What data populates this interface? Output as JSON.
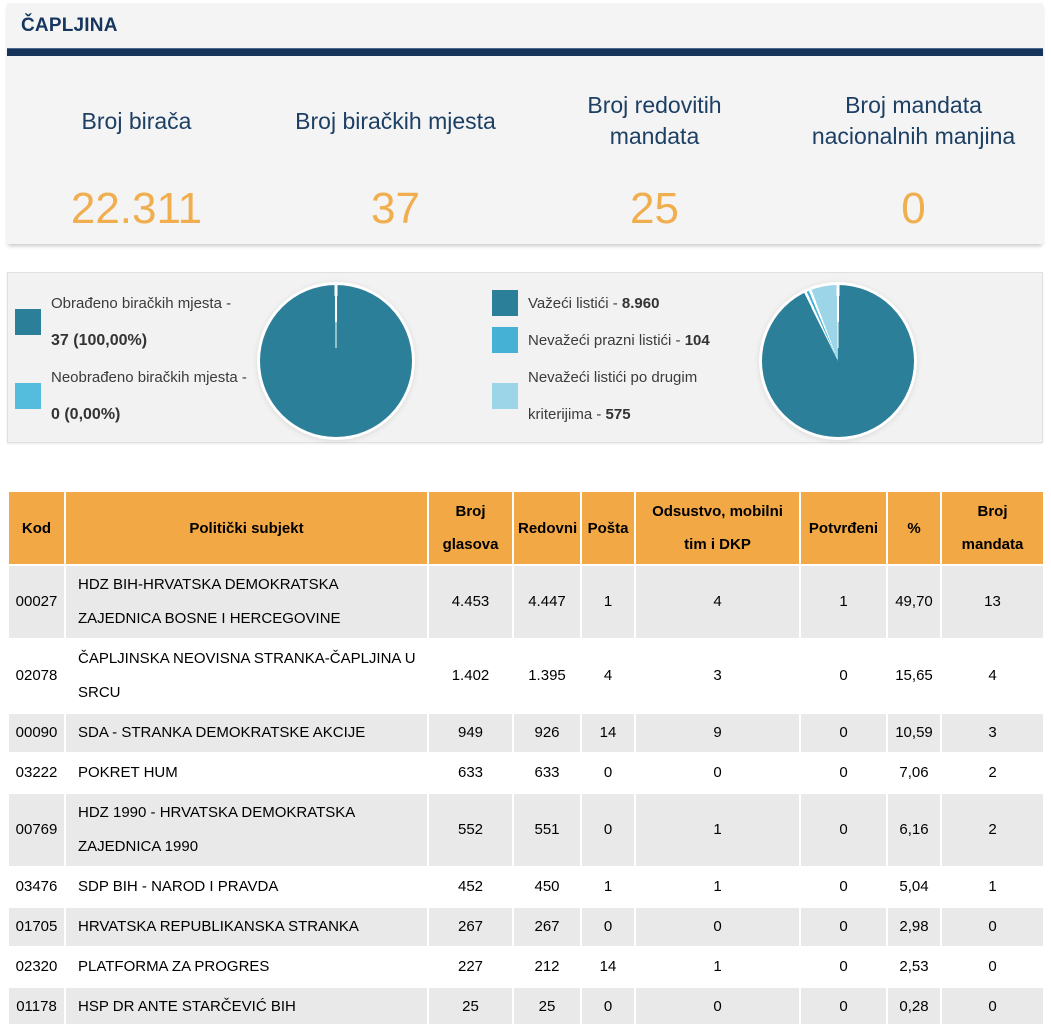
{
  "title": "ČAPLJINA",
  "stats": {
    "cards": [
      {
        "label": "Broj birača",
        "value": "22.311"
      },
      {
        "label": "Broj biračkih mjesta",
        "value": "37"
      },
      {
        "label": "Broj redovitih mandata",
        "value": "25"
      },
      {
        "label": "Broj mandata nacionalnih manjina",
        "value": "0"
      }
    ]
  },
  "processing_legend": {
    "items": [
      {
        "label": "Obrađeno biračkih mjesta -",
        "value": "37 (100,00%)",
        "color": "#2c7f99"
      },
      {
        "label": "Neobrađeno biračkih mjesta -",
        "value": "0 (0,00%)",
        "color": "#54bcdc"
      }
    ]
  },
  "ballots_legend": {
    "items": [
      {
        "label": "Važeći listići -",
        "value": "8.960",
        "color": "#2c7f99"
      },
      {
        "label": "Nevažeći prazni listići -",
        "value": "104",
        "color": "#44b1d5"
      },
      {
        "label": "Nevažeći listići po drugim kriterijima -",
        "value": "575",
        "color": "#9cd4e8"
      }
    ]
  },
  "chart_data": [
    {
      "type": "pie",
      "labels": [
        "Obrađeno biračkih mjesta",
        "Neobrađeno biračkih mjesta"
      ],
      "values": [
        37,
        0
      ],
      "percent_labels": [
        "100,00%",
        "0,00%"
      ],
      "colors": [
        "#2c7f99",
        "#54bcdc"
      ],
      "legend_position": "left"
    },
    {
      "type": "pie",
      "labels": [
        "Važeći listići",
        "Nevažeći prazni listići",
        "Nevažeći listići po drugim kriterijima"
      ],
      "values": [
        8960,
        104,
        575
      ],
      "colors": [
        "#2c7f99",
        "#44b1d5",
        "#9cd4e8"
      ],
      "legend_position": "left"
    }
  ],
  "table": {
    "headers": [
      "Kod",
      "Politički subjekt",
      "Broj glasova",
      "Redovni",
      "Pošta",
      "Odsustvo, mobilni tim i DKP",
      "Potvrđeni",
      "%",
      "Broj mandata"
    ],
    "rows": [
      [
        "00027",
        "HDZ BIH-HRVATSKA DEMOKRATSKA ZAJEDNICA BOSNE I HERCEGOVINE",
        "4.453",
        "4.447",
        "1",
        "4",
        "1",
        "49,70",
        "13"
      ],
      [
        "02078",
        "ČAPLJINSKA NEOVISNA STRANKA-ČAPLJINA U SRCU",
        "1.402",
        "1.395",
        "4",
        "3",
        "0",
        "15,65",
        "4"
      ],
      [
        "00090",
        "SDA - STRANKA DEMOKRATSKE AKCIJE",
        "949",
        "926",
        "14",
        "9",
        "0",
        "10,59",
        "3"
      ],
      [
        "03222",
        "POKRET HUM",
        "633",
        "633",
        "0",
        "0",
        "0",
        "7,06",
        "2"
      ],
      [
        "00769",
        "HDZ 1990 - HRVATSKA DEMOKRATSKA ZAJEDNICA 1990",
        "552",
        "551",
        "0",
        "1",
        "0",
        "6,16",
        "2"
      ],
      [
        "03476",
        "SDP BIH - NAROD I PRAVDA",
        "452",
        "450",
        "1",
        "1",
        "0",
        "5,04",
        "1"
      ],
      [
        "01705",
        "HRVATSKA REPUBLIKANSKA STRANKA",
        "267",
        "267",
        "0",
        "0",
        "0",
        "2,98",
        "0"
      ],
      [
        "02320",
        "PLATFORMA ZA PROGRES",
        "227",
        "212",
        "14",
        "1",
        "0",
        "2,53",
        "0"
      ],
      [
        "01178",
        "HSP DR ANTE STARČEVIĆ BIH",
        "25",
        "25",
        "0",
        "0",
        "0",
        "0,28",
        "0"
      ]
    ]
  },
  "colors": {
    "navy": "#16345a",
    "value_orange": "#f0ae4f",
    "table_header_orange": "#f2a844",
    "row_gray": "#e9e9e9",
    "pie_teal": "#2c7f99",
    "pie_medium_blue": "#44b1d5",
    "pie_light_blue": "#9cd4e8",
    "legend_sky_blue": "#54bcdc"
  }
}
